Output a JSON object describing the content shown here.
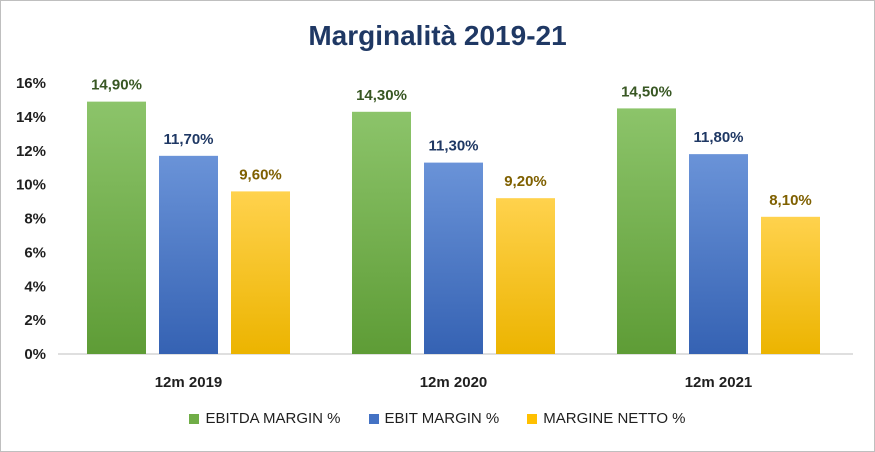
{
  "chart_data": {
    "type": "bar",
    "title": "Marginalità 2019-21",
    "categories": [
      "12m 2019",
      "12m 2020",
      "12m 2021"
    ],
    "series": [
      {
        "name": "EBITDA MARGIN %",
        "values": [
          14.9,
          14.3,
          14.5
        ],
        "labels": [
          "14,90%",
          "14,30%",
          "14,50%"
        ],
        "color": "#70ad47",
        "label_color": "#385723"
      },
      {
        "name": "EBIT MARGIN %",
        "values": [
          11.7,
          11.3,
          11.8
        ],
        "labels": [
          "11,70%",
          "11,30%",
          "11,80%"
        ],
        "color": "#4472c4",
        "label_color": "#1f3864"
      },
      {
        "name": "MARGINE NETTO %",
        "values": [
          9.6,
          9.2,
          8.1
        ],
        "labels": [
          "9,60%",
          "9,20%",
          "8,10%"
        ],
        "color": "#ffc000",
        "label_color": "#7f6000"
      }
    ],
    "ylim": [
      0,
      16
    ],
    "yticks": [
      "0%",
      "2%",
      "4%",
      "6%",
      "8%",
      "10%",
      "12%",
      "14%",
      "16%"
    ],
    "legend_position": "bottom",
    "grid": false
  }
}
